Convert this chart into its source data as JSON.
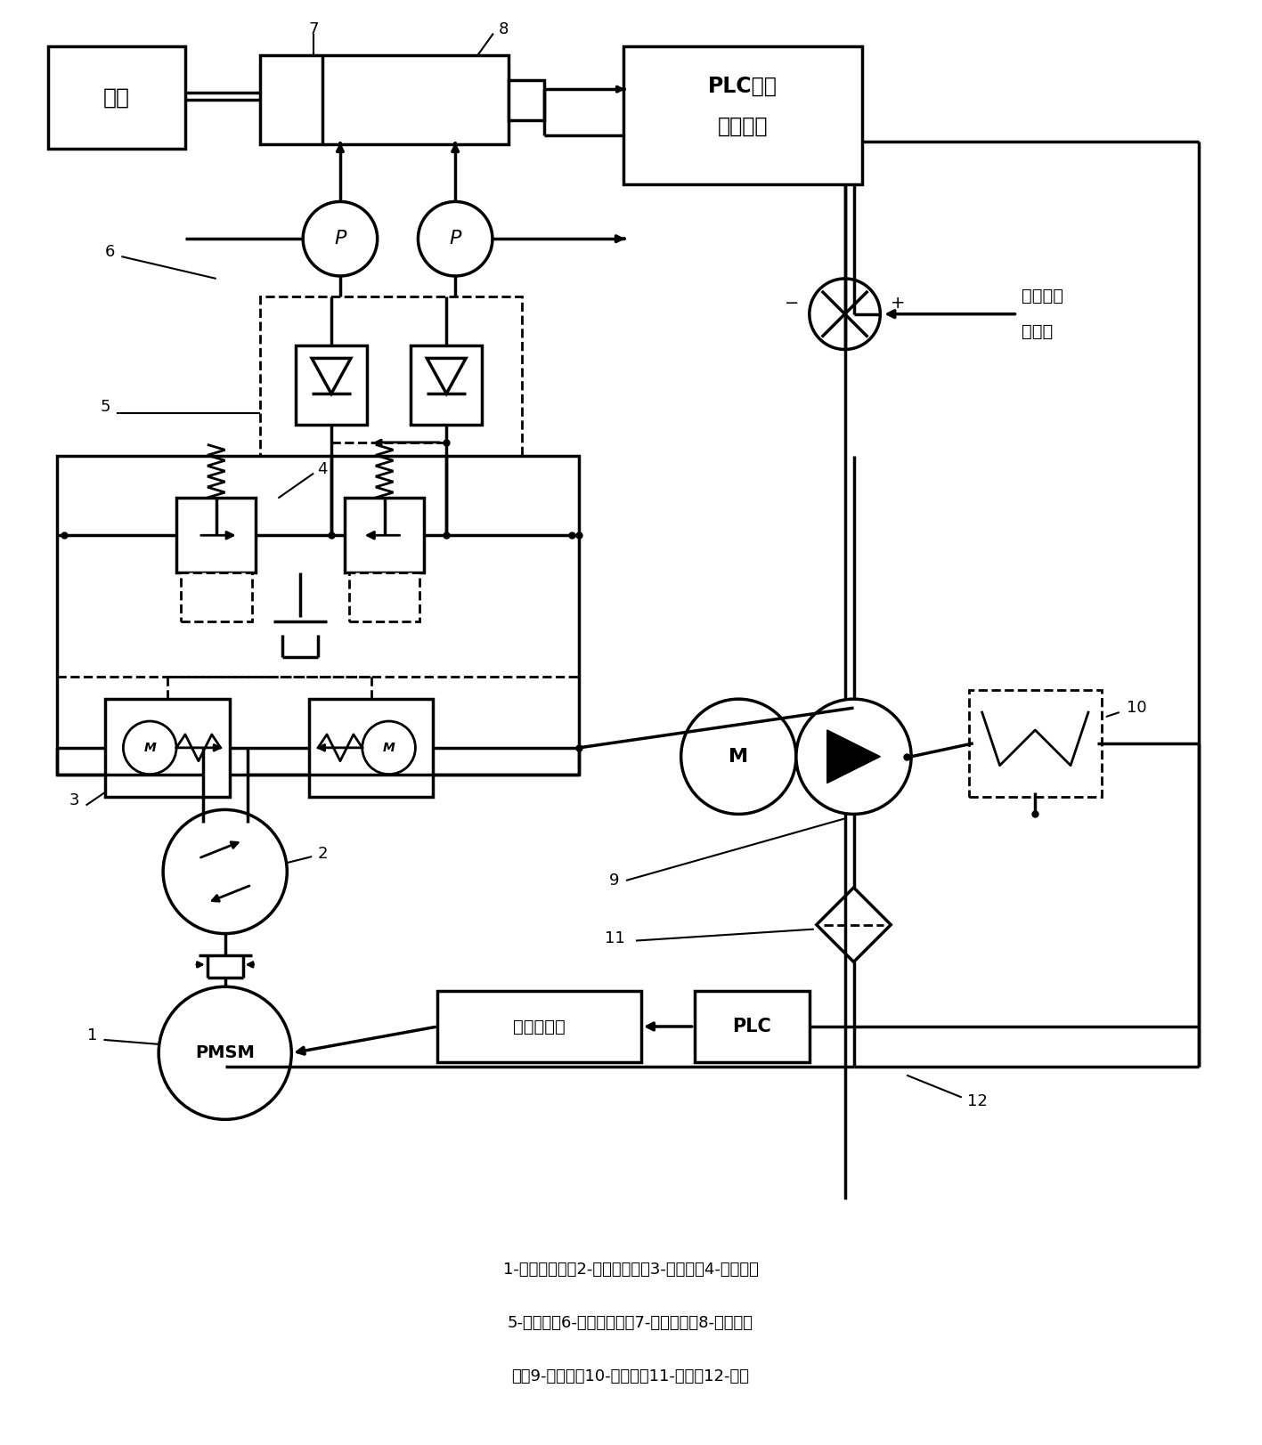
{
  "bg_color": "#ffffff",
  "line_color": "#000000",
  "caption_line1": "1-伺服电动机；2-双向定量泵；3-吸排阀；4-安全阀；",
  "caption_line2": "5-液压锁；6-压力变送器；7-转舵油缸；8-位移传感",
  "caption_line3": "器；9-补油泵；10-溢流阀；11-滤器；12-油箱"
}
